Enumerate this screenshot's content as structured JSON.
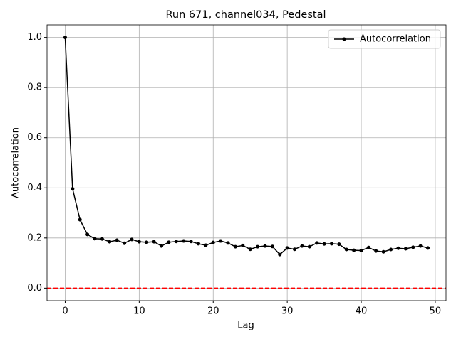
{
  "chart_data": {
    "type": "line",
    "title": "Run 671, channel034, Pedestal",
    "xlabel": "Lag",
    "ylabel": "Autocorrelation",
    "x": [
      0,
      1,
      2,
      3,
      4,
      5,
      6,
      7,
      8,
      9,
      10,
      11,
      12,
      13,
      14,
      15,
      16,
      17,
      18,
      19,
      20,
      21,
      22,
      23,
      24,
      25,
      26,
      27,
      28,
      29,
      30,
      31,
      32,
      33,
      34,
      35,
      36,
      37,
      38,
      39,
      40,
      41,
      42,
      43,
      44,
      45,
      46,
      47,
      48,
      49
    ],
    "series": [
      {
        "name": "Autocorrelation",
        "color": "#000000",
        "values": [
          1.0,
          0.396,
          0.273,
          0.214,
          0.197,
          0.196,
          0.185,
          0.191,
          0.179,
          0.194,
          0.185,
          0.183,
          0.185,
          0.168,
          0.183,
          0.186,
          0.188,
          0.186,
          0.177,
          0.171,
          0.182,
          0.188,
          0.18,
          0.165,
          0.17,
          0.155,
          0.165,
          0.168,
          0.166,
          0.134,
          0.16,
          0.155,
          0.168,
          0.165,
          0.18,
          0.176,
          0.177,
          0.175,
          0.154,
          0.151,
          0.15,
          0.162,
          0.148,
          0.145,
          0.154,
          0.159,
          0.157,
          0.163,
          0.168,
          0.16
        ]
      }
    ],
    "hline": {
      "value": 0,
      "color": "#ff0000"
    },
    "xlim": [
      -2.45,
      51.45
    ],
    "ylim": [
      -0.05,
      1.05
    ],
    "xticks": [
      0,
      10,
      20,
      30,
      40,
      50
    ],
    "yticks": [
      {
        "value": 0,
        "label": "0.0"
      },
      0.2,
      0.4,
      0.6,
      0.8,
      {
        "value": 1,
        "label": "1.0"
      }
    ],
    "grid": true,
    "legend": "upper right"
  }
}
